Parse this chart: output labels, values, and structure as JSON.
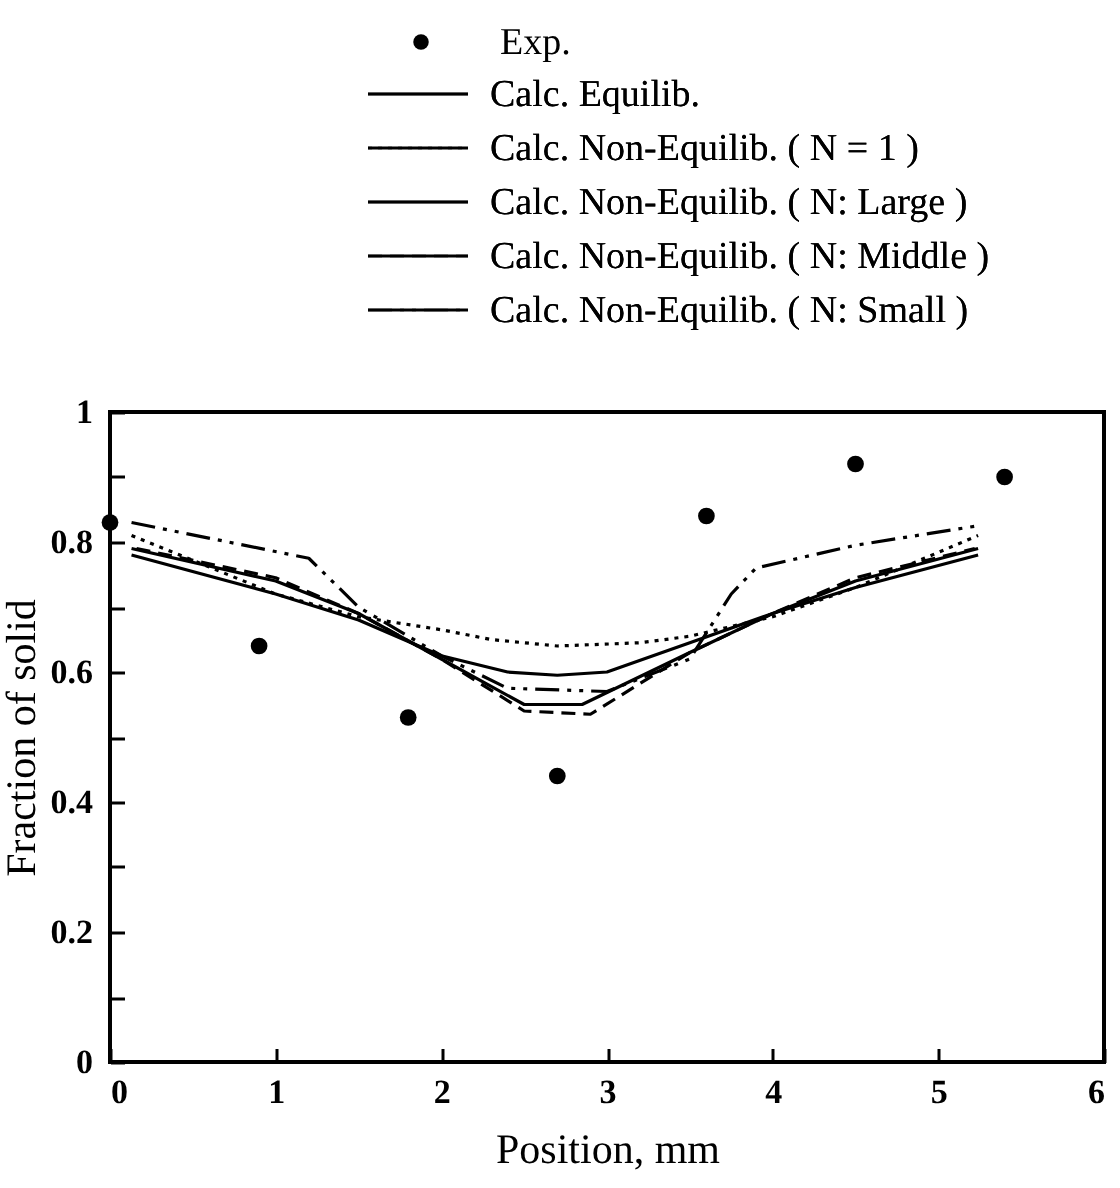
{
  "chart_data": {
    "type": "line",
    "xlabel": "Position, mm",
    "ylabel": "Fraction of solid",
    "xlim": [
      0,
      6
    ],
    "xticks": [
      0,
      1,
      2,
      3,
      4,
      5,
      6
    ],
    "ylim": [
      0,
      1
    ],
    "yticks": [
      0,
      {
        "value": 0.1,
        "label": null
      },
      0.2,
      {
        "value": 0.3,
        "label": null
      },
      0.4,
      {
        "value": 0.5,
        "label": null
      },
      0.6,
      {
        "value": 0.7,
        "label": null
      },
      0.8,
      {
        "value": 0.9,
        "label": null
      },
      1
    ],
    "legend": "top",
    "grid": false,
    "series": [
      {
        "name": "Exp.",
        "type": "scatter",
        "marker": "circle",
        "color": "#000000",
        "x": [
          0,
          0.9,
          1.8,
          2.7,
          3.6,
          4.5,
          5.4
        ],
        "values": [
          0.83,
          0.64,
          0.53,
          0.44,
          0.84,
          0.92,
          0.9
        ]
      },
      {
        "name": "Calc. Equilib.",
        "line_style": "solid",
        "color": "#000000",
        "x": [
          0.13,
          1,
          1.5,
          2,
          2.4,
          2.7,
          3,
          3.5,
          4,
          4.5,
          5.24
        ],
        "values": [
          0.78,
          0.72,
          0.68,
          0.625,
          0.6,
          0.595,
          0.6,
          0.645,
          0.69,
          0.73,
          0.78
        ]
      },
      {
        "name": "Calc. Non-Equilib. ( N = 1 )",
        "line_style": "dotted",
        "color": "#000000",
        "x": [
          0.13,
          1,
          1.5,
          2,
          2.3,
          2.7,
          3.2,
          3.5,
          4,
          4.5,
          5.24
        ],
        "values": [
          0.81,
          0.72,
          0.685,
          0.665,
          0.65,
          0.64,
          0.645,
          0.655,
          0.685,
          0.73,
          0.81
        ]
      },
      {
        "name": "Calc. Non-Equilib. ( N: Large )",
        "line_style": "solid",
        "color": "#000000",
        "x": [
          0.13,
          1,
          1.5,
          2,
          2.5,
          2.85,
          3.5,
          4,
          4.5,
          5.24
        ],
        "values": [
          0.79,
          0.74,
          0.69,
          0.62,
          0.55,
          0.55,
          0.63,
          0.69,
          0.74,
          0.79
        ]
      },
      {
        "name": "Calc. Non-Equilib. ( N: Middle )",
        "line_style": "dashed",
        "color": "#000000",
        "x": [
          0.16,
          1,
          1.5,
          2,
          2.5,
          2.9,
          3.5,
          4,
          4.5,
          5.22
        ],
        "values": [
          0.79,
          0.745,
          0.69,
          0.62,
          0.54,
          0.535,
          0.63,
          0.69,
          0.745,
          0.79
        ]
      },
      {
        "name": "Calc. Non-Equilib. ( N: Small )",
        "line_style": "dashdot",
        "color": "#000000",
        "x": [
          0.13,
          1.2,
          1.5,
          2,
          2.4,
          3,
          3.5,
          3.75,
          3.9,
          4.5,
          5.24
        ],
        "values": [
          0.83,
          0.775,
          0.7,
          0.625,
          0.575,
          0.57,
          0.62,
          0.72,
          0.76,
          0.795,
          0.825
        ]
      }
    ]
  }
}
